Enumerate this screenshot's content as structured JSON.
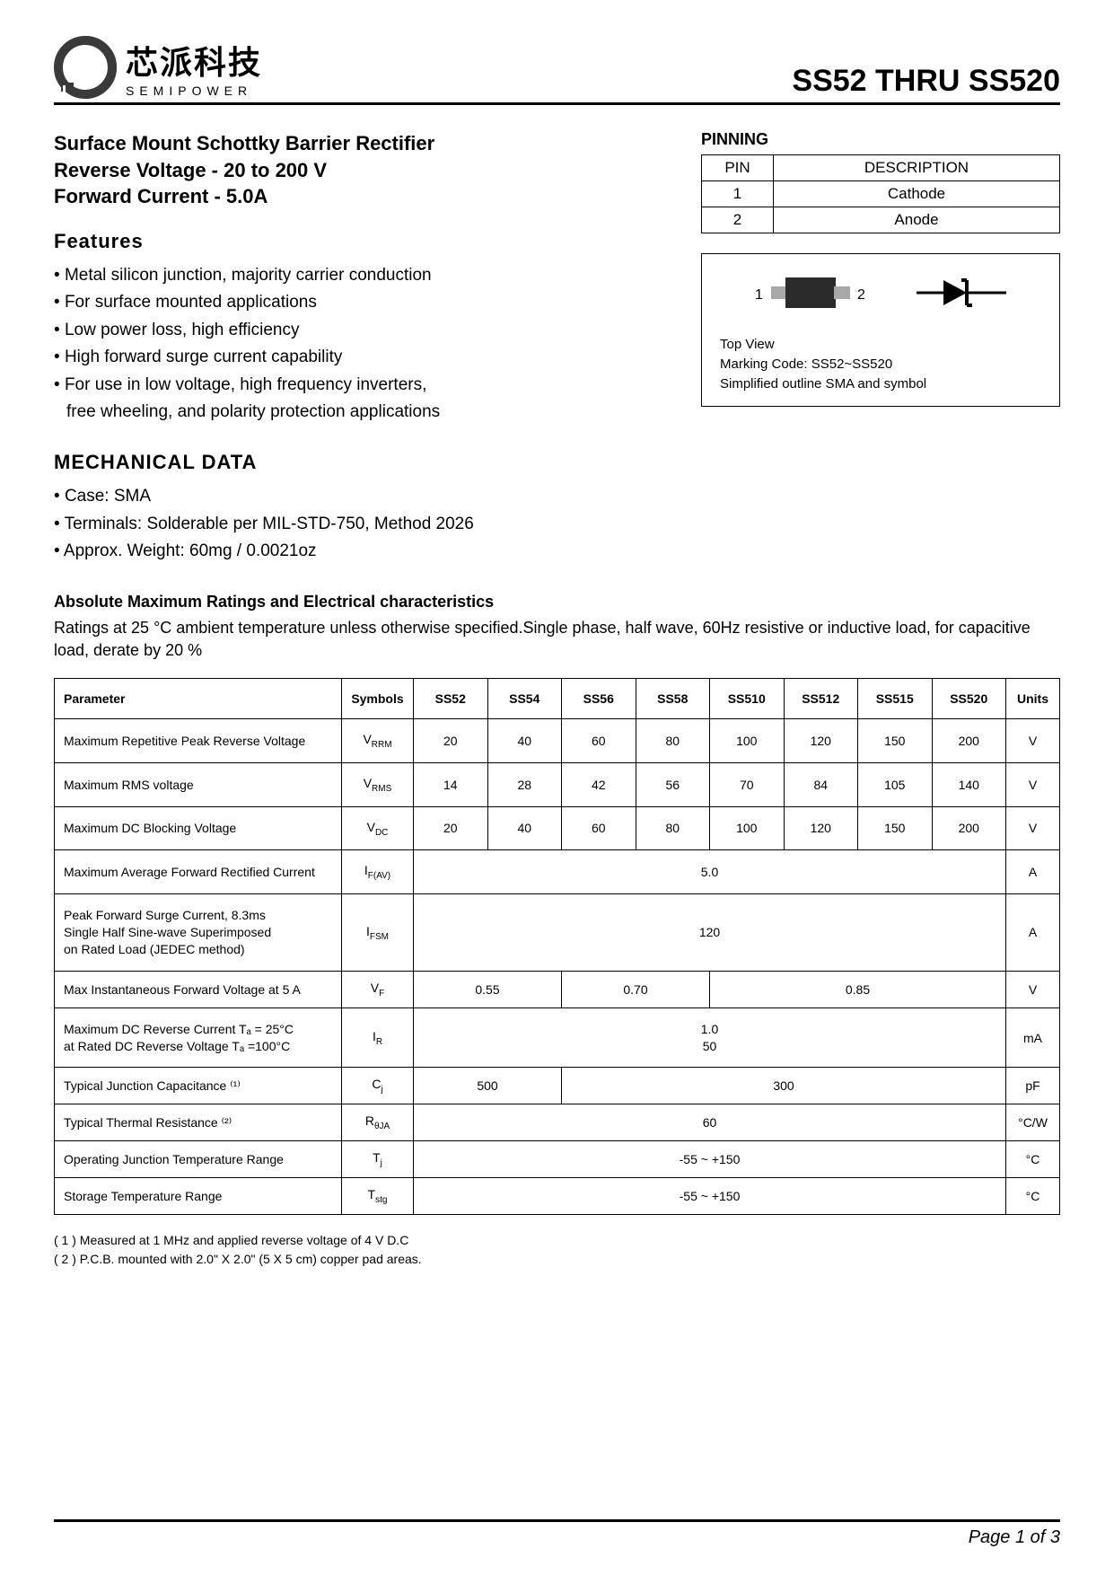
{
  "logo": {
    "cn": "芯派科技",
    "en": "SEMIPOWER",
    "mark_colors": {
      "outer": "#3a3a3a",
      "inner": "#3a3a3a",
      "bg": "#ffffff"
    }
  },
  "doc_title": "SS52  THRU  SS520",
  "subtitle_lines": [
    "Surface Mount Schottky Barrier Rectifier",
    "Reverse Voltage - 20 to 200 V",
    "Forward Current - 5.0A"
  ],
  "features": {
    "heading": "Features",
    "items": [
      "Metal silicon junction, majority carrier conduction",
      "For surface mounted applications",
      "Low power loss, high efficiency",
      "High forward surge current capability",
      "For use in low voltage, high frequency inverters,",
      "free wheeling, and polarity protection applications"
    ],
    "continuation_index": 5
  },
  "mechanical": {
    "heading": "MECHANICAL DATA",
    "items": [
      "Case: SMA",
      "Terminals: Solderable per MIL-STD-750, Method 2026",
      "Approx. Weight: 60mg  /  0.0021oz"
    ]
  },
  "pinning": {
    "heading": "PINNING",
    "columns": [
      "PIN",
      "DESCRIPTION"
    ],
    "rows": [
      [
        "1",
        "Cathode"
      ],
      [
        "2",
        "Anode"
      ]
    ]
  },
  "package_box": {
    "pin1": "1",
    "pin2": "2",
    "notes": [
      "Top View",
      "Marking Code:  SS52~SS520",
      "Simplified outline SMA and symbol"
    ],
    "colors": {
      "body": "#2b2b2b",
      "lead": "#a8a8a8",
      "line": "#000000"
    }
  },
  "abs_section": {
    "heading": "Absolute Maximum Ratings and Electrical characteristics",
    "note": "Ratings at 25 °C ambient temperature unless otherwise specified.Single phase, half wave, 60Hz resistive or inductive load, for capacitive load, derate by 20 %"
  },
  "spec_table": {
    "header": {
      "parameter": "Parameter",
      "symbols": "Symbols",
      "parts": [
        "SS52",
        "SS54",
        "SS56",
        "SS58",
        "SS510",
        "SS512",
        "SS515",
        "SS520"
      ],
      "units": "Units"
    },
    "col_widths": {
      "parameter": 320,
      "symbols": 80,
      "part_each": 76,
      "units": 60
    },
    "rows": [
      {
        "param": "Maximum Repetitive Peak Reverse Voltage",
        "sym_main": "V",
        "sym_sub": "RRM",
        "cells": [
          {
            "span": 1,
            "val": "20"
          },
          {
            "span": 1,
            "val": "40"
          },
          {
            "span": 1,
            "val": "60"
          },
          {
            "span": 1,
            "val": "80"
          },
          {
            "span": 1,
            "val": "100"
          },
          {
            "span": 1,
            "val": "120"
          },
          {
            "span": 1,
            "val": "150"
          },
          {
            "span": 1,
            "val": "200"
          }
        ],
        "unit": "V"
      },
      {
        "param": "Maximum RMS voltage",
        "sym_main": "V",
        "sym_sub": "RMS",
        "cells": [
          {
            "span": 1,
            "val": "14"
          },
          {
            "span": 1,
            "val": "28"
          },
          {
            "span": 1,
            "val": "42"
          },
          {
            "span": 1,
            "val": "56"
          },
          {
            "span": 1,
            "val": "70"
          },
          {
            "span": 1,
            "val": "84"
          },
          {
            "span": 1,
            "val": "105"
          },
          {
            "span": 1,
            "val": "140"
          }
        ],
        "unit": "V"
      },
      {
        "param": "Maximum DC Blocking Voltage",
        "sym_main": "V",
        "sym_sub": "DC",
        "cells": [
          {
            "span": 1,
            "val": "20"
          },
          {
            "span": 1,
            "val": "40"
          },
          {
            "span": 1,
            "val": "60"
          },
          {
            "span": 1,
            "val": "80"
          },
          {
            "span": 1,
            "val": "100"
          },
          {
            "span": 1,
            "val": "120"
          },
          {
            "span": 1,
            "val": "150"
          },
          {
            "span": 1,
            "val": "200"
          }
        ],
        "unit": "V"
      },
      {
        "param": "Maximum Average Forward Rectified Current",
        "sym_main": "I",
        "sym_sub": "F(AV)",
        "cells": [
          {
            "span": 8,
            "val": "5.0"
          }
        ],
        "unit": "A"
      },
      {
        "param": "Peak Forward Surge Current, 8.3ms\nSingle Half Sine-wave Superimposed\non Rated Load (JEDEC method)",
        "sym_main": "I",
        "sym_sub": "FSM",
        "cells": [
          {
            "span": 8,
            "val": "120"
          }
        ],
        "unit": "A"
      },
      {
        "param": "Max Instantaneous Forward Voltage at 5 A",
        "sym_main": "V",
        "sym_sub": "F",
        "cells": [
          {
            "span": 2,
            "val": "0.55"
          },
          {
            "span": 2,
            "val": "0.70"
          },
          {
            "span": 4,
            "val": "0.85"
          }
        ],
        "unit": "V",
        "short": true
      },
      {
        "param": "Maximum DC Reverse Current   Tₐ = 25°C\nat Rated DC Reverse Voltage     Tₐ =100°C",
        "sym_main": "I",
        "sym_sub": "R",
        "cells": [
          {
            "span": 8,
            "val": "1.0\n50"
          }
        ],
        "unit": "mA"
      },
      {
        "param": "Typical Junction Capacitance ⁽¹⁾",
        "sym_main": "C",
        "sym_sub": "j",
        "cells": [
          {
            "span": 2,
            "val": "500"
          },
          {
            "span": 6,
            "val": "300"
          }
        ],
        "unit": "pF",
        "short": true
      },
      {
        "param": "Typical Thermal Resistance ⁽²⁾",
        "sym_main": "R",
        "sym_sub": "θJA",
        "cells": [
          {
            "span": 8,
            "val": "60"
          }
        ],
        "unit": "°C/W",
        "short": true
      },
      {
        "param": "Operating Junction Temperature Range",
        "sym_main": "T",
        "sym_sub": "j",
        "cells": [
          {
            "span": 8,
            "val": "-55 ~ +150"
          }
        ],
        "unit": "°C",
        "short": true
      },
      {
        "param": "Storage Temperature Range",
        "sym_main": "T",
        "sym_sub": "stg",
        "cells": [
          {
            "span": 8,
            "val": "-55 ~ +150"
          }
        ],
        "unit": "°C",
        "short": true
      }
    ]
  },
  "footnotes": [
    "( 1 ) Measured at 1 MHz and applied reverse voltage of 4 V D.C",
    "( 2 ) P.C.B. mounted with 2.0\" X 2.0\" (5 X 5 cm) copper pad areas."
  ],
  "footer": "Page 1 of 3"
}
